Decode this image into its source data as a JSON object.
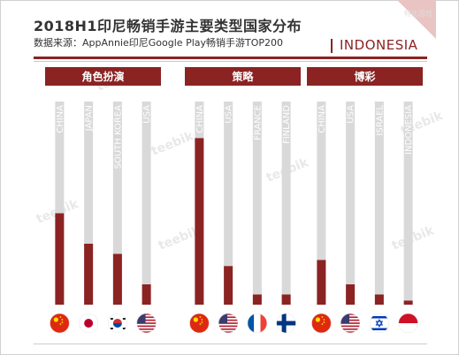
{
  "header": {
    "title": "2018H1印尼畅销手游主要类型国家分布",
    "subtitle": "数据来源：AppAnnie印尼Google Play畅销手游TOP200",
    "country_tag": "INDONESIA",
    "watermark_text": "teebik",
    "small_watermark": "特比游戏"
  },
  "colors": {
    "accent": "#8b2323",
    "track": "#d9d9d9",
    "corner": "#e9c4c2"
  },
  "chart_data": {
    "type": "bar",
    "orientation": "vertical",
    "unit": "share",
    "ylim": [
      0,
      1
    ],
    "groups": [
      {
        "name": "角色扮演",
        "categories": [
          "CHINA",
          "JAPAN",
          "SOUTH KOREA",
          "USA"
        ],
        "values": [
          0.45,
          0.3,
          0.25,
          0.1
        ],
        "flags": [
          "cn",
          "jp",
          "kr",
          "us"
        ]
      },
      {
        "name": "策略",
        "categories": [
          "CHINA",
          "USA",
          "FRANCE",
          "FINLAND"
        ],
        "values": [
          0.82,
          0.19,
          0.05,
          0.05
        ],
        "flags": [
          "cn",
          "us",
          "fr",
          "fi"
        ]
      },
      {
        "name": "博彩",
        "categories": [
          "CHINA",
          "USA",
          "ISRAEL",
          "INDONESIA"
        ],
        "values": [
          0.22,
          0.1,
          0.05,
          0.02
        ],
        "flags": [
          "cn",
          "us",
          "il",
          "id"
        ]
      }
    ]
  }
}
